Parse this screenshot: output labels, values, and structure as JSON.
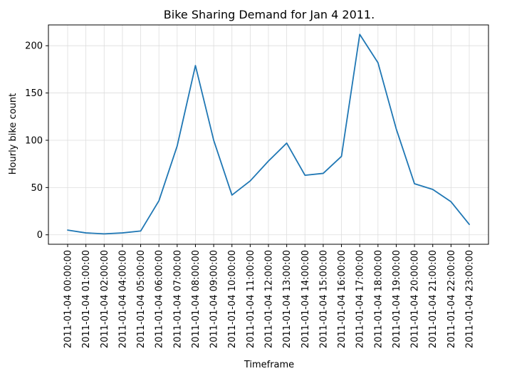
{
  "chart_data": {
    "type": "line",
    "title": "Bike Sharing Demand for Jan 4 2011.",
    "xlabel": "Timeframe",
    "ylabel": "Hourly bike count",
    "grid": true,
    "ylim": [
      -10,
      222
    ],
    "yticks": [
      0,
      50,
      100,
      150,
      200
    ],
    "line_color": "#1f77b4",
    "categories": [
      "2011-01-04 00:00:00",
      "2011-01-04 01:00:00",
      "2011-01-04 02:00:00",
      "2011-01-04 04:00:00",
      "2011-01-04 05:00:00",
      "2011-01-04 06:00:00",
      "2011-01-04 07:00:00",
      "2011-01-04 08:00:00",
      "2011-01-04 09:00:00",
      "2011-01-04 10:00:00",
      "2011-01-04 11:00:00",
      "2011-01-04 12:00:00",
      "2011-01-04 13:00:00",
      "2011-01-04 14:00:00",
      "2011-01-04 15:00:00",
      "2011-01-04 16:00:00",
      "2011-01-04 17:00:00",
      "2011-01-04 18:00:00",
      "2011-01-04 19:00:00",
      "2011-01-04 20:00:00",
      "2011-01-04 21:00:00",
      "2011-01-04 22:00:00",
      "2011-01-04 23:00:00"
    ],
    "values": [
      5,
      2,
      1,
      2,
      4,
      36,
      94,
      179,
      100,
      42,
      57,
      78,
      97,
      63,
      65,
      83,
      212,
      182,
      112,
      54,
      48,
      35,
      11
    ]
  }
}
